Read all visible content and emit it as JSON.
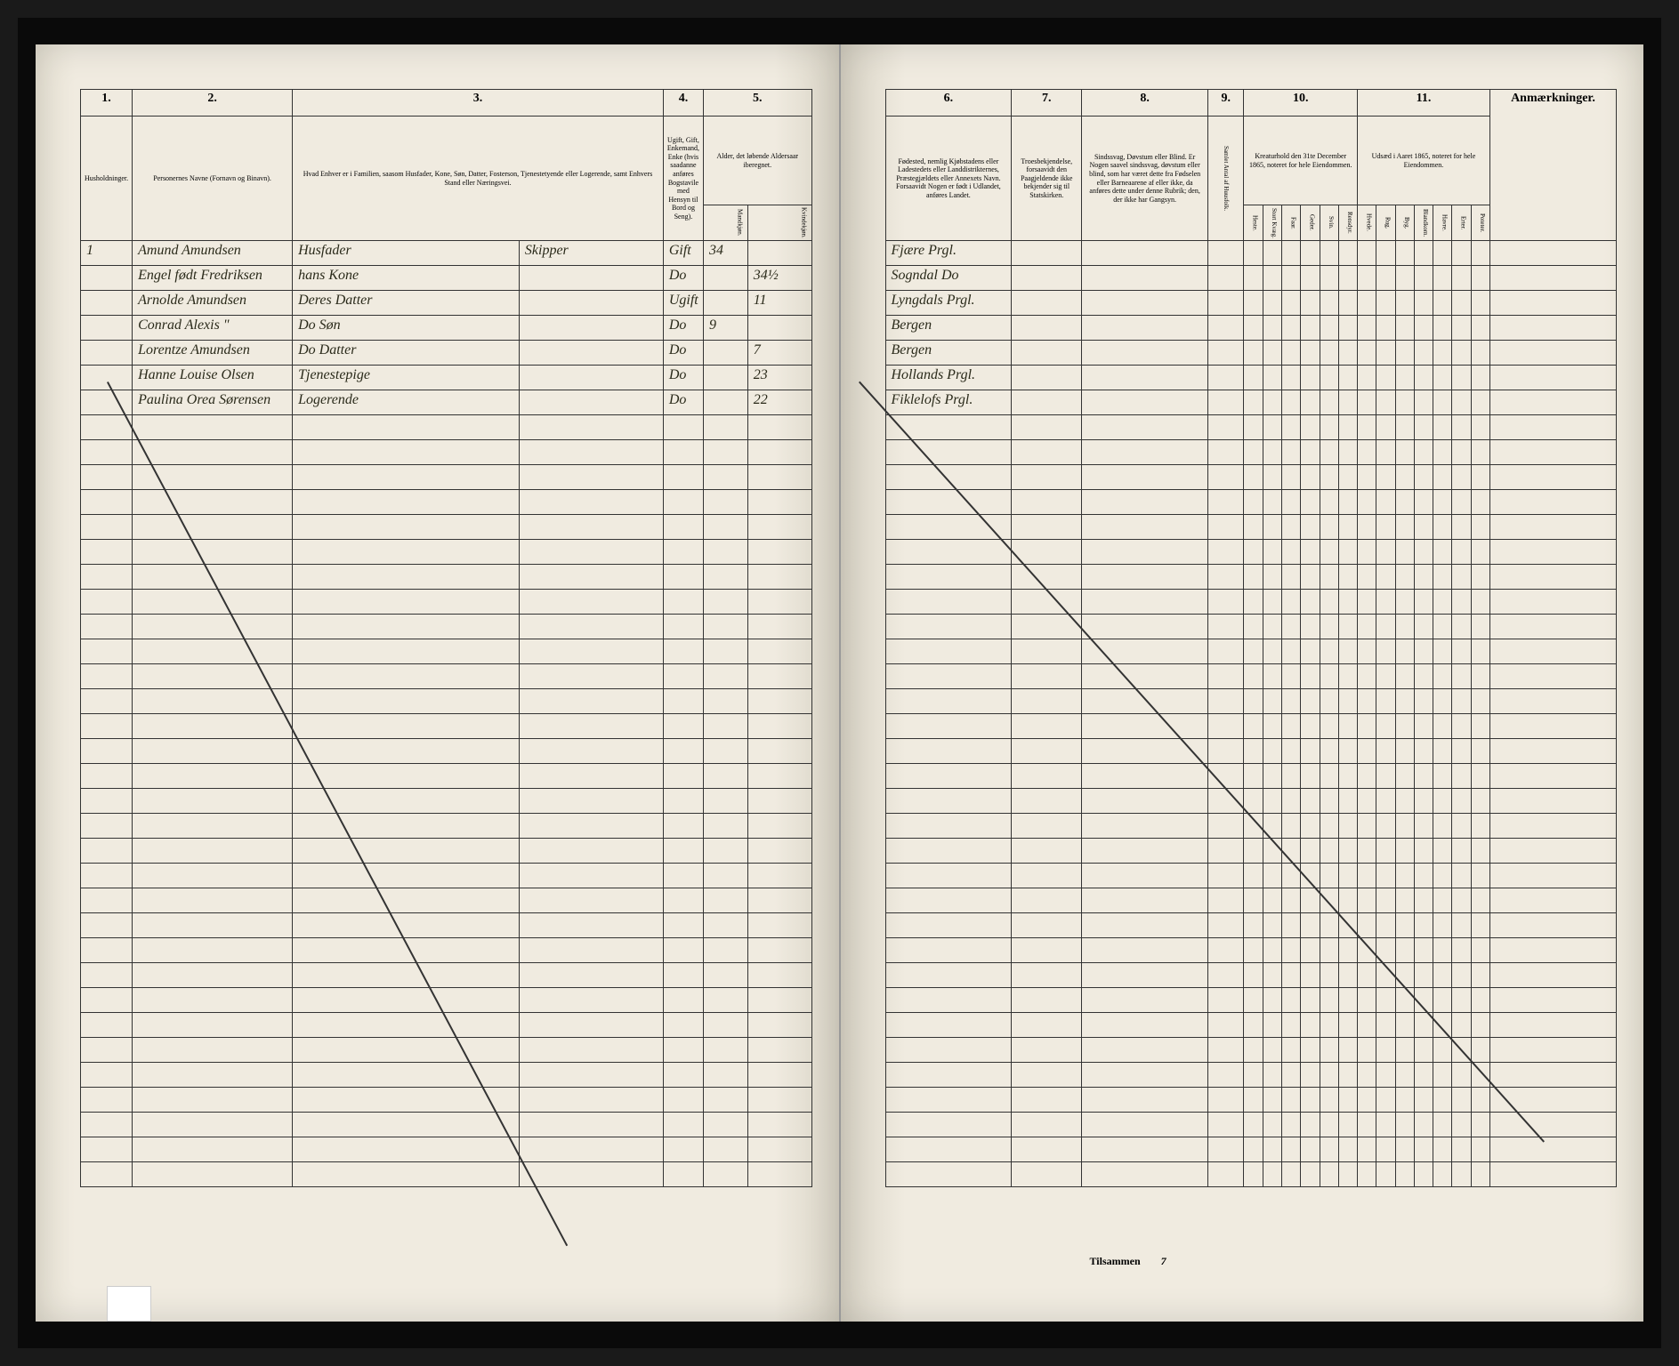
{
  "columns_left": {
    "c1": "1.",
    "c2": "2.",
    "c3": "3.",
    "c4": "4.",
    "c5": "5."
  },
  "columns_right": {
    "c6": "6.",
    "c7": "7.",
    "c8": "8.",
    "c9": "9.",
    "c10": "10.",
    "c11": "11."
  },
  "headers_left": {
    "h1": "Husholdninger.",
    "h2": "Personernes Navne (Fornavn og Binavn).",
    "h3": "Hvad Enhver er i Familien, saasom Husfader, Kone, Søn, Datter, Fosterson, Tjenestetyende eller Logerende, samt Enhvers Stand eller Næringsvei.",
    "h4": "Ugift, Gift, Enkemand, Enke (hvis saadanne anføres Bogstavile med Hensyn til Bord og Seng).",
    "h5": "Alder, det løbende Aldersaar iberegnet.",
    "h5a": "Mandkjøn.",
    "h5b": "Kvindekjøn."
  },
  "headers_right": {
    "h6": "Fødested, nemlig Kjøbstadens eller Ladestedets eller Landdistrikternes, Præstegjældets eller Annexets Navn. Forsaavidt Nogen er født i Udlandet, anføres Landet.",
    "h7": "Troesbekjendelse, forsaavidt den Paagjeldende ikke bekjender sig til Statskirken.",
    "h8": "Sindssvag, Døvstum eller Blind. Er Nogen saavel sindssvag, døvstum eller blind, som har været dette fra Fødselen eller Barneaarene af eller ikke, da anføres dette under denne Rubrik; den, der ikke har Gangsyn.",
    "h9": "Samlet Antal af Huusfolk.",
    "h10": "Kreaturhold den 31te December 1865, noteret for hele Eiendommen.",
    "h11": "Udsæd i Aaret 1865, noteret for hele Eiendommen.",
    "h12": "Anmærkninger."
  },
  "subcols_10": [
    "Heste.",
    "Stort Kvæg.",
    "Faar.",
    "Geder.",
    "Svin.",
    "Rensdyr."
  ],
  "subcols_11": [
    "Hvede.",
    "Rug.",
    "Byg.",
    "Blandkorn.",
    "Havre.",
    "Erter.",
    "Poteter."
  ],
  "rows": [
    {
      "num": "1",
      "name": "Amund Amundsen",
      "role1": "Husfader",
      "role2": "Skipper",
      "status": "Gift",
      "age_m": "34",
      "age_f": "",
      "birthplace": "Fjære Prgl."
    },
    {
      "num": "",
      "name": "Engel født Fredriksen",
      "role1": "hans Kone",
      "role2": "",
      "status": "Do",
      "age_m": "",
      "age_f": "34½",
      "birthplace": "Sogndal Do"
    },
    {
      "num": "",
      "name": "Arnolde Amundsen",
      "role1": "Deres Datter",
      "role2": "",
      "status": "Ugift",
      "age_m": "",
      "age_f": "11",
      "birthplace": "Lyngdals Prgl."
    },
    {
      "num": "",
      "name": "Conrad Alexis \"",
      "role1": "Do Søn",
      "role2": "",
      "status": "Do",
      "age_m": "9",
      "age_f": "",
      "birthplace": "Bergen"
    },
    {
      "num": "",
      "name": "Lorentze Amundsen",
      "role1": "Do Datter",
      "role2": "",
      "status": "Do",
      "age_m": "",
      "age_f": "7",
      "birthplace": "Bergen"
    },
    {
      "num": "",
      "name": "Hanne Louise Olsen",
      "role1": "Tjenestepige",
      "role2": "",
      "status": "Do",
      "age_m": "",
      "age_f": "23",
      "birthplace": "Hollands Prgl."
    },
    {
      "num": "",
      "name": "Paulina Orea Sørensen",
      "role1": "Logerende",
      "role2": "",
      "status": "Do",
      "age_m": "",
      "age_f": "22",
      "birthplace": "Fiklelofs Prgl."
    }
  ],
  "footer": {
    "tilsammen": "Tilsammen",
    "tilsammen_val": "7"
  },
  "styling": {
    "page_bg": "#f0ebe0",
    "ink_color": "#2a2a1a",
    "border_color": "#333333",
    "book_bg": "#1a1a1a",
    "handwriting_font": "cursive",
    "print_font": "serif"
  }
}
